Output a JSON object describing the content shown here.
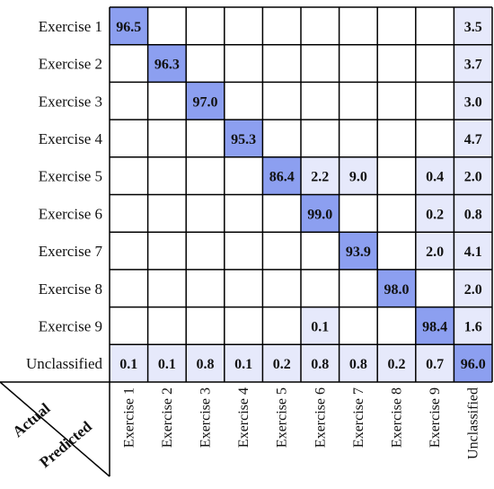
{
  "chart_data": {
    "type": "heatmap",
    "title": "",
    "ylabel": "Actual",
    "xlabel": "Predicted",
    "rows": [
      "Exercise 1",
      "Exercise 2",
      "Exercise 3",
      "Exercise 4",
      "Exercise 5",
      "Exercise 6",
      "Exercise 7",
      "Exercise 8",
      "Exercise 9",
      "Unclassified"
    ],
    "columns": [
      "Exercise 1",
      "Exercise 2",
      "Exercise 3",
      "Exercise 4",
      "Exercise 5",
      "Exercise 6",
      "Exercise 7",
      "Exercise 8",
      "Exercise 9",
      "Unclassified"
    ],
    "cells": [
      [
        "96.5",
        "",
        "",
        "",
        "",
        "",
        "",
        "",
        "",
        "3.5"
      ],
      [
        "",
        "96.3",
        "",
        "",
        "",
        "",
        "",
        "",
        "",
        "3.7"
      ],
      [
        "",
        "",
        "97.0",
        "",
        "",
        "",
        "",
        "",
        "",
        "3.0"
      ],
      [
        "",
        "",
        "",
        "95.3",
        "",
        "",
        "",
        "",
        "",
        "4.7"
      ],
      [
        "",
        "",
        "",
        "",
        "86.4",
        "2.2",
        "9.0",
        "",
        "0.4",
        "2.0"
      ],
      [
        "",
        "",
        "",
        "",
        "",
        "99.0",
        "",
        "",
        "0.2",
        "0.8"
      ],
      [
        "",
        "",
        "",
        "",
        "",
        "",
        "93.9",
        "",
        "2.0",
        "4.1"
      ],
      [
        "",
        "",
        "",
        "",
        "",
        "",
        "",
        "98.0",
        "",
        "2.0"
      ],
      [
        "",
        "",
        "",
        "",
        "",
        "0.1",
        "",
        "",
        "98.4",
        "1.6"
      ],
      [
        "0.1",
        "0.1",
        "0.8",
        "0.1",
        "0.2",
        "0.8",
        "0.8",
        "0.2",
        "0.7",
        "96.0"
      ]
    ],
    "colors": {
      "diagonal": "#8c9ff0",
      "off_diagonal": "#e6e9fb",
      "empty": "#ffffff",
      "grid": "#000000"
    }
  }
}
